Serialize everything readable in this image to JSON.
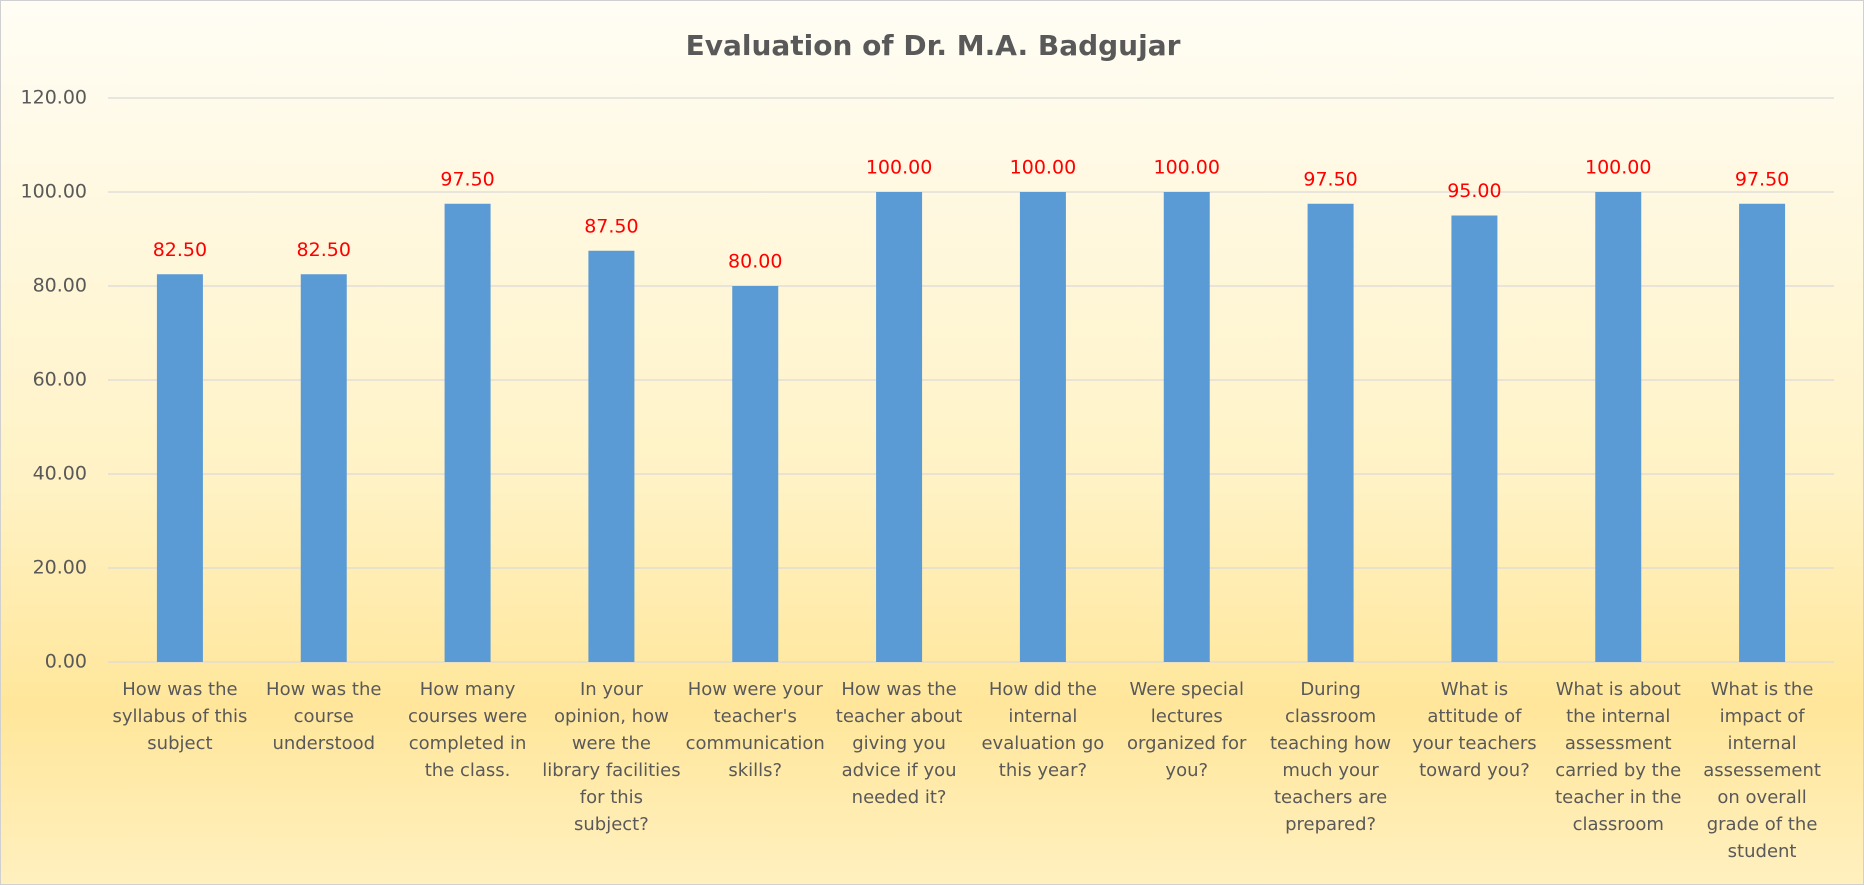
{
  "chart_data": {
    "type": "bar",
    "title": "Evaluation of Dr. M.A. Badgujar",
    "categories": [
      "How was the syllabus of this subject",
      "How was the course understood",
      "How many courses were completed in the class.",
      "In your opinion, how were the library facilities for this subject?",
      "How were your teacher's communication skills?",
      "How was the teacher about giving you advice if you needed it?",
      "How did the internal evaluation go this year?",
      "Were special lectures organized for you?",
      "During classroom teaching how much your teachers are prepared?",
      "What is attitude of your teachers toward you?",
      "What is about the internal assessment carried by the teacher in the classroom",
      "What is the impact of internal assessement on overall grade of the student"
    ],
    "values": [
      82.5,
      82.5,
      97.5,
      87.5,
      80,
      100,
      100,
      100,
      97.5,
      95,
      100,
      97.5
    ],
    "value_labels": [
      "82.50",
      "82.50",
      "97.50",
      "87.50",
      "80.00",
      "100.00",
      "100.00",
      "100.00",
      "97.50",
      "95.00",
      "100.00",
      "97.50"
    ],
    "color": "#5b9bd5",
    "label_color": "#ff0000",
    "ylim": [
      0,
      120
    ],
    "yticks": [
      {
        "value": 0,
        "label": "0.00"
      },
      {
        "value": 20,
        "label": "20.00"
      },
      {
        "value": 40,
        "label": "40.00"
      },
      {
        "value": 60,
        "label": "60.00"
      },
      {
        "value": 80,
        "label": "80.00"
      },
      {
        "value": 100,
        "label": "100.00"
      },
      {
        "value": 120,
        "label": "120.00"
      }
    ],
    "grid": true
  }
}
